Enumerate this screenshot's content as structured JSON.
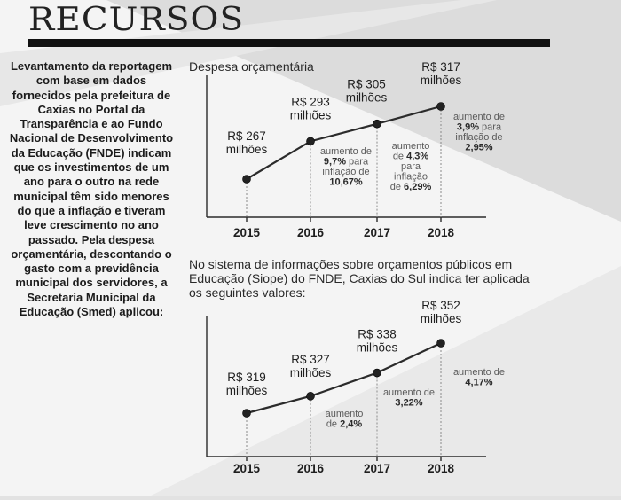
{
  "header": {
    "title": "RECURSOS"
  },
  "sidebar": {
    "text": "Levantamento da reportagem com base em dados fornecidos pela prefeitura de Caxias no Portal da Transparência e ao Fundo Nacional de Desenvolvimento da Educação (FNDE) indicam que os investimentos de um ano para o outro na rede municipal têm sido menores do que a inflação e tiveram leve crescimento no ano passado. Pela despesa orçamentária, descontando o gasto com a previdência municipal dos servidores, a Secretaria Municipal da Educação (Smed) aplicou:"
  },
  "chart2_intro": "No sistema de informações sobre orçamentos públicos em Educação (Siope) do FNDE, Caxias do Sul indica ter aplicada os seguintes valores:",
  "colors": {
    "text": "#1e1e1e",
    "line": "#2b2b2b",
    "note": "#5a5a5a",
    "guide": "#8a8a8a"
  },
  "chart_data": [
    {
      "type": "line",
      "title": "Despesa orçamentária",
      "x": [
        "2015",
        "2016",
        "2017",
        "2018"
      ],
      "values": [
        267,
        293,
        305,
        317
      ],
      "unit": "R$ milhões",
      "point_labels": [
        [
          "R$ 267",
          "milhões"
        ],
        [
          "R$ 293",
          "milhões"
        ],
        [
          "R$ 305",
          "milhões"
        ],
        [
          "R$ 317",
          "milhões"
        ]
      ],
      "annotations": [
        {
          "lines": [
            "aumento de",
            "9,7% para",
            "inflação de",
            "10,67%"
          ],
          "bold": [
            "9,7%",
            "10,67%"
          ]
        },
        {
          "lines": [
            "aumento",
            "de 4,3%",
            "para",
            "inflação",
            "de 6,29%"
          ],
          "bold": [
            "4,3%",
            "6,29%"
          ]
        },
        {
          "lines": [
            "aumento de",
            "3,9% para",
            "inflação de",
            "2,95%"
          ],
          "bold": [
            "3,9%",
            "2,95%"
          ]
        }
      ]
    },
    {
      "type": "line",
      "title": "",
      "x": [
        "2015",
        "2016",
        "2017",
        "2018"
      ],
      "values": [
        319,
        327,
        338,
        352
      ],
      "unit": "R$ milhões",
      "point_labels": [
        [
          "R$ 319",
          "milhões"
        ],
        [
          "R$ 327",
          "milhões"
        ],
        [
          "R$ 338",
          "milhões"
        ],
        [
          "R$ 352",
          "milhões"
        ]
      ],
      "annotations": [
        {
          "lines": [
            "aumento",
            "de 2,4%"
          ],
          "bold": [
            "2,4%"
          ]
        },
        {
          "lines": [
            "aumento de",
            "3,22%"
          ],
          "bold": [
            "3,22%"
          ]
        },
        {
          "lines": [
            "aumento de",
            "4,17%"
          ],
          "bold": [
            "4,17%"
          ]
        }
      ]
    }
  ]
}
